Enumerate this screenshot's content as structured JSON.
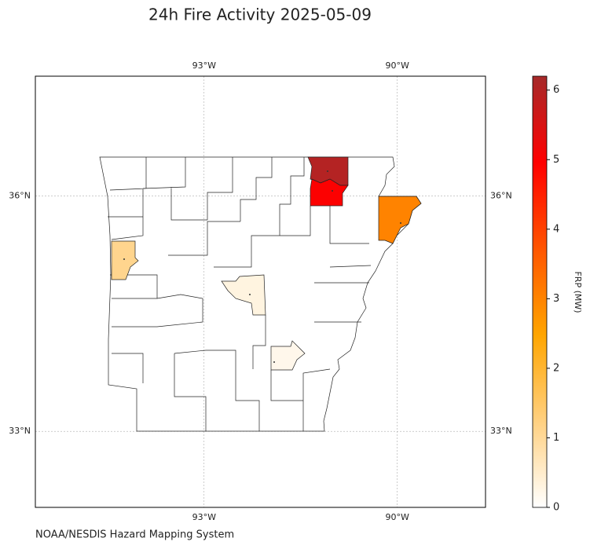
{
  "chart_data": {
    "type": "map",
    "title": "24h Fire Activity 2025-05-09",
    "xlim": [
      -95.62,
      -88.63
    ],
    "ylim": [
      32.03,
      37.53
    ],
    "xticks": [
      {
        "value": -93,
        "label": "93°W"
      },
      {
        "value": -90,
        "label": "90°W"
      }
    ],
    "yticks": [
      {
        "value": 33,
        "label": "33°N"
      },
      {
        "value": 36,
        "label": "36°N"
      }
    ],
    "grid": true,
    "fires": [
      6.0,
      5.0,
      3.0,
      1.1,
      0.3,
      0.2
    ],
    "colormap": [
      "#ffffff",
      "#ffd080",
      "#ffa500",
      "#ff5500",
      "#ff0000",
      "#a52a2a"
    ],
    "colorbar": {
      "label": "FRP (MW)",
      "lim": [
        0,
        6.2
      ],
      "ticks": [
        0,
        1,
        2,
        3,
        4,
        5,
        6
      ]
    },
    "source": "NOAA/NESDIS Hazard Mapping System"
  }
}
